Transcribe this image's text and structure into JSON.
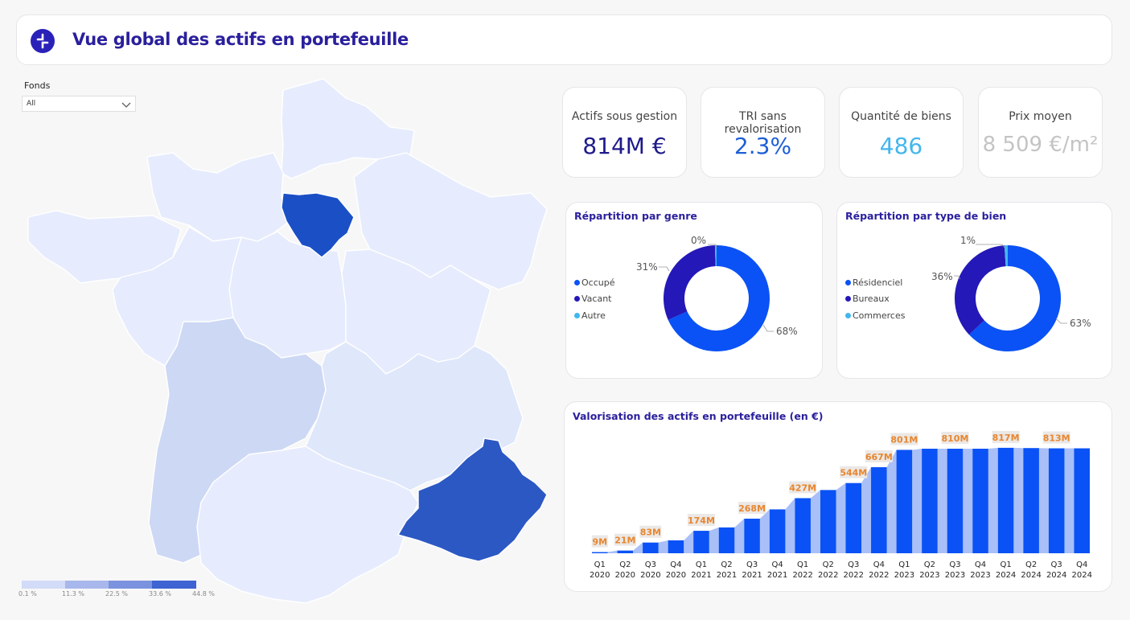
{
  "header": {
    "title": "Vue global des actifs en portefeuille"
  },
  "filter": {
    "label": "Fonds",
    "value": "All"
  },
  "map": {
    "legend": [
      "0.1 %",
      "11.3 %",
      "22.5 %",
      "33.6 %",
      "44.8 %"
    ],
    "colors": [
      "#d2dbf7",
      "#a8b8ec",
      "#7b93df",
      "#5d74d6",
      "#2e5ccf"
    ]
  },
  "kpis": [
    {
      "label": "Actifs sous gestion",
      "value": "814M €",
      "color": "#1f1a8c"
    },
    {
      "label": "TRI sans revalorisation",
      "value": "2.3%",
      "color": "#1e5fd6"
    },
    {
      "label": "Quantité de biens",
      "value": "486",
      "color": "#44b6ee"
    },
    {
      "label": "Prix moyen",
      "value": "8 509 €/m²",
      "color": "#c4c4c4"
    }
  ],
  "donut_genre": {
    "title": "Répartition par genre",
    "legend": [
      {
        "label": "Occupé",
        "color": "#0a52f5"
      },
      {
        "label": "Vacant",
        "color": "#2418b8"
      },
      {
        "label": "Autre",
        "color": "#44b6ee"
      }
    ],
    "labels": [
      "0%",
      "31%",
      "68%"
    ]
  },
  "donut_type": {
    "title": "Répartition par type de bien",
    "legend": [
      {
        "label": "Résidenciel",
        "color": "#0a52f5"
      },
      {
        "label": "Bureaux",
        "color": "#2418b8"
      },
      {
        "label": "Commerces",
        "color": "#44b6ee"
      }
    ],
    "labels": [
      "1%",
      "36%",
      "63%"
    ]
  },
  "chart_data": [
    {
      "type": "pie",
      "title": "Répartition par genre",
      "categories": [
        "Occupé",
        "Vacant",
        "Autre"
      ],
      "values": [
        68,
        31,
        0.5
      ],
      "value_labels": [
        "68%",
        "31%",
        "0%"
      ]
    },
    {
      "type": "pie",
      "title": "Répartition par type de bien",
      "categories": [
        "Résidenciel",
        "Bureaux",
        "Commerces"
      ],
      "values": [
        63,
        36,
        1
      ],
      "value_labels": [
        "63%",
        "36%",
        "1%"
      ]
    },
    {
      "type": "bar",
      "title": "Valorisation des actifs en portefeuille (en €)",
      "categories": [
        "Q1 2020",
        "Q2 2020",
        "Q3 2020",
        "Q4 2020",
        "Q1 2021",
        "Q2 2021",
        "Q3 2021",
        "Q4 2021",
        "Q1 2022",
        "Q2 2022",
        "Q3 2022",
        "Q4 2022",
        "Q1 2023",
        "Q2 2023",
        "Q3 2023",
        "Q4 2023",
        "Q1 2024",
        "Q2 2024",
        "Q3 2024",
        "Q4 2024"
      ],
      "values": [
        9,
        21,
        83,
        100,
        174,
        200,
        268,
        340,
        427,
        490,
        544,
        667,
        801,
        810,
        810,
        810,
        817,
        815,
        813,
        813
      ],
      "unit": "M",
      "data_labels": [
        "9M",
        "21M",
        "83M",
        "",
        "174M",
        "",
        "268M",
        "",
        "427M",
        "",
        "544M",
        "667M",
        "801M",
        "",
        "810M",
        "",
        "817M",
        "",
        "813M",
        ""
      ],
      "ylim": [
        0,
        900
      ]
    }
  ]
}
